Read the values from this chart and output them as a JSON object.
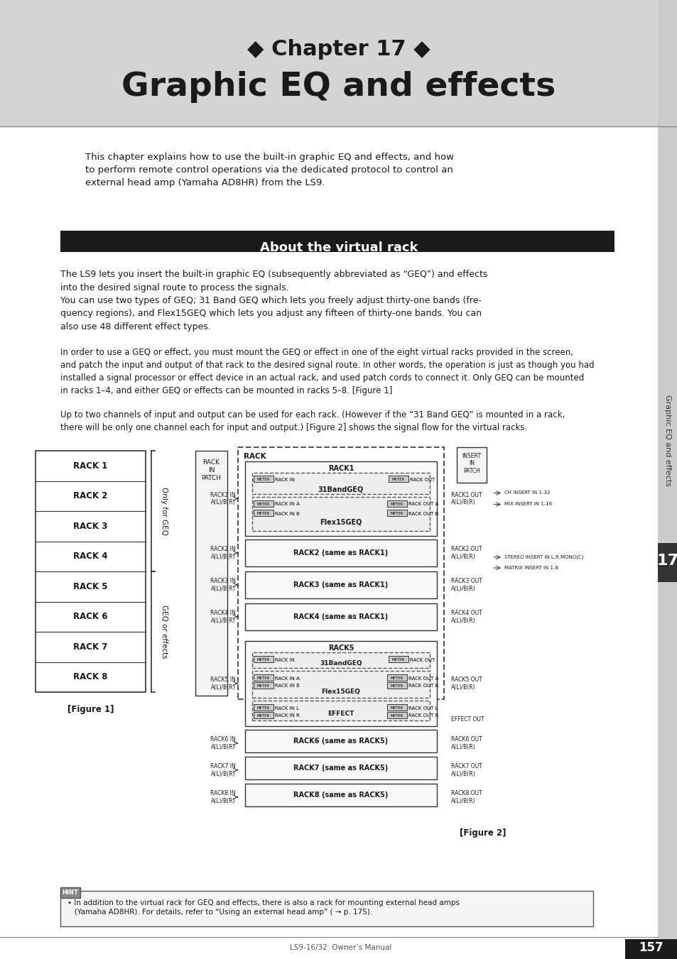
{
  "background_color": "#d4d4d4",
  "white_bg": "#ffffff",
  "chapter_line1": "◆ Chapter 17 ◆",
  "chapter_line2": "Graphic EQ and effects",
  "header_bg": "#d4d4d4",
  "intro_text": "This chapter explains how to use the built-in graphic EQ and effects, and how\nto perform remote control operations via the dedicated protocol to control an\nexternal head amp (Yamaha AD8HR) from the LS9.",
  "section_title": "About the virtual rack",
  "section_bg": "#1a1a1a",
  "section_text_color": "#ffffff",
  "body_text1": "The LS9 lets you insert the built-in graphic EQ (subsequently abbreviated as “GEQ”) and effects\ninto the desired signal route to process the signals.\nYou can use two types of GEQ; 31 Band GEQ which lets you freely adjust thirty-one bands (fre-\nquency regions), and Flex15GEQ which lets you adjust any fifteen of thirty-one bands. You can\nalso use 48 different effect types.",
  "body_text2": "In order to use a GEQ or effect, you must mount the GEQ or effect in one of the eight virtual racks provided in the screen,\nand patch the input and output of that rack to the desired signal route. In other words, the operation is just as though you had\ninstalled a signal processor or effect device in an actual rack, and used patch cords to connect it. Only GEQ can be mounted\nin racks 1–4, and either GEQ or effects can be mounted in racks 5–8. [Figure 1]",
  "body_text3": "Up to two channels of input and output can be used for each rack. (However if the “31 Band GEQ” is mounted in a rack,\nthere will be only one channel each for input and output.) [Figure 2] shows the signal flow for the virtual racks.",
  "hint_text": "• In addition to the virtual rack for GEQ and effects, there is also a rack for mounting external head amps\n   (Yamaha AD8HR). For details, refer to “Using an external head amp” ( → p. 175).",
  "page_number": "157",
  "manual_text": "LS9-16/32  Owner’s Manual",
  "chapter_num": "17",
  "sidebar_text": "Graphic EQ and effects"
}
